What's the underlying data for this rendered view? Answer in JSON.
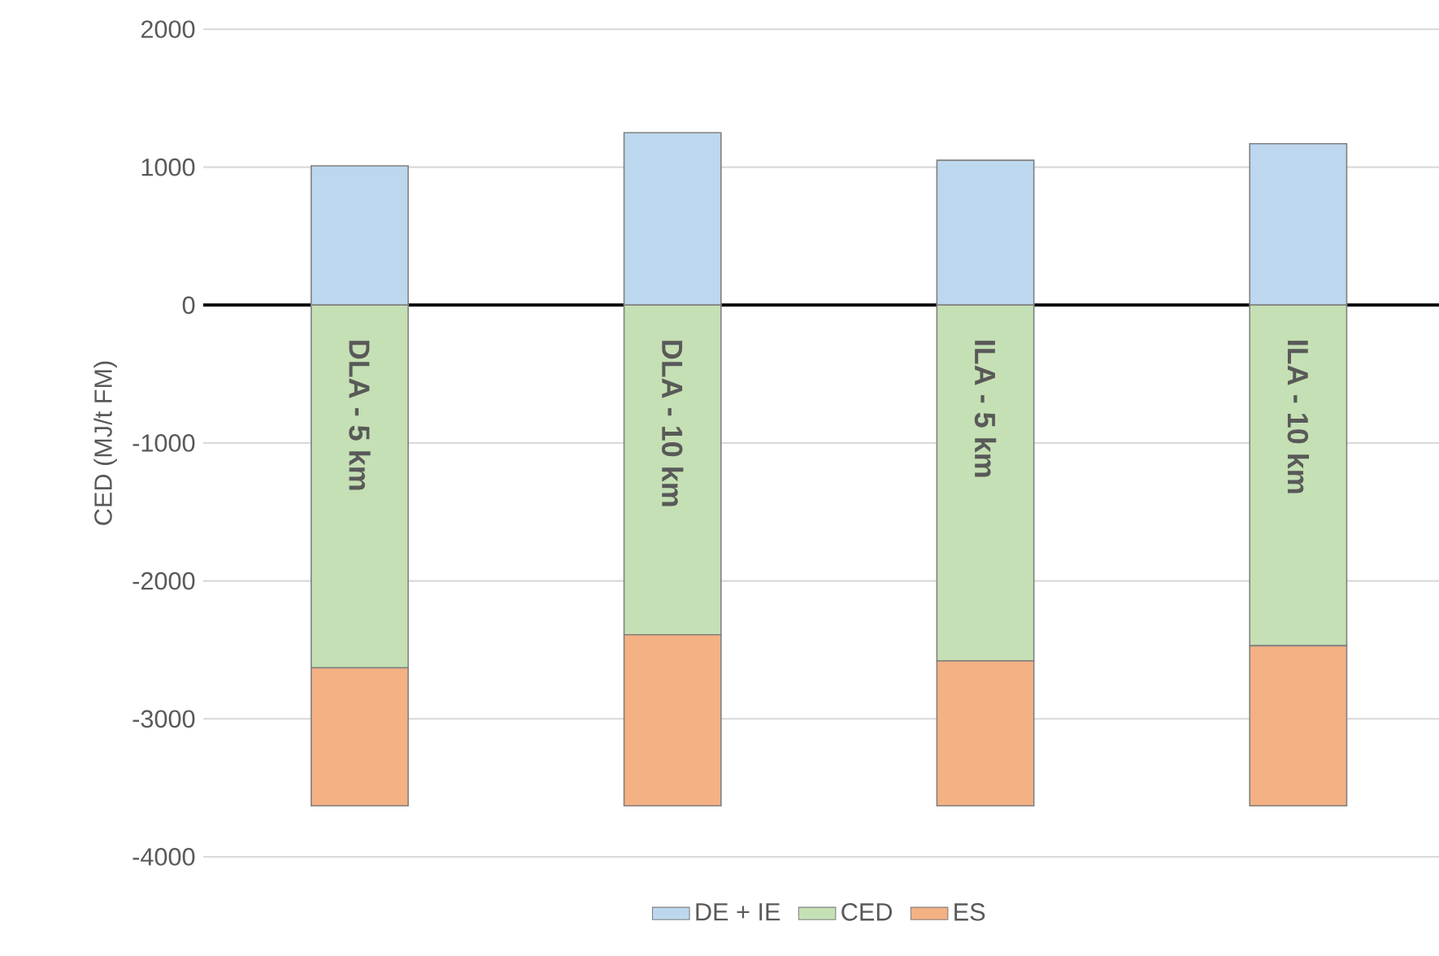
{
  "chart_data": {
    "type": "bar",
    "stacked": true,
    "ylabel": "CED (MJ/t FM)",
    "categories": [
      "DLA - 5 km",
      "DLA - 10 km",
      "ILA - 5 km",
      "ILA - 10 km"
    ],
    "series": [
      {
        "name": "DE + IE",
        "color": "#bdd7ee",
        "values": [
          1010,
          1250,
          1050,
          1170
        ]
      },
      {
        "name": "CED",
        "color": "#c5e0b4",
        "values": [
          -2630,
          -2390,
          -2580,
          -2470
        ]
      },
      {
        "name": "ES",
        "color": "#f4b183",
        "values": [
          -1000,
          -1240,
          -1050,
          -1160
        ]
      }
    ],
    "ylim": [
      -4000,
      2000
    ],
    "yticks": [
      -4000,
      -3000,
      -2000,
      -1000,
      0,
      1000,
      2000
    ],
    "grid": "y",
    "legend": "bottom"
  }
}
